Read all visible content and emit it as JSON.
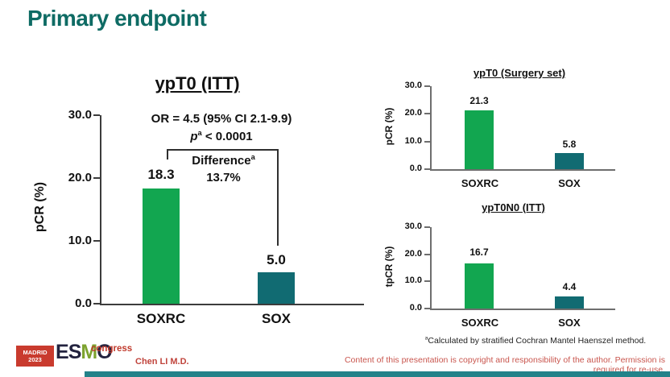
{
  "page": {
    "title": "Primary endpoint",
    "presenter": "Chen LI M.D.",
    "copyright_notice": "Content of this presentation is copyright and responsibility of the author. Permission is required for re-use.",
    "footnote": {
      "sup": "a",
      "text": "Calculated by stratified Cochran Mantel Haenszel method."
    },
    "logo": {
      "location": "MADRID",
      "year": "2023",
      "letters": [
        "E",
        "S",
        "M",
        "O"
      ],
      "event": "congress"
    }
  },
  "annotations": {
    "or_text": "OR = 4.5 (95% CI 2.1-9.9)",
    "p_label": "p",
    "p_sup": "a",
    "p_rest": " < 0.0001",
    "difference_label": "Difference",
    "difference_sup": "a",
    "difference_value": "13.7%"
  },
  "colors": {
    "title_teal": "#0e6b64",
    "bar_green": "#12a650",
    "bar_teal": "#116b72",
    "accent_red": "#c0392b",
    "footer_bar_teal": "#238289"
  },
  "chart_data": [
    {
      "type": "bar",
      "title": "ypT0 (ITT)",
      "ylabel": "pCR (%)",
      "categories": [
        "SOXRC",
        "SOX"
      ],
      "values": [
        18.3,
        5.0
      ],
      "value_labels": [
        "18.3",
        "5.0"
      ],
      "yticks": [
        "30.0",
        "20.0",
        "10.0",
        "0.0"
      ],
      "ylim": [
        0,
        30
      ],
      "grid": false,
      "legend": "none"
    },
    {
      "type": "bar",
      "title": "ypT0 (Surgery set)",
      "ylabel": "pCR (%)",
      "categories": [
        "SOXRC",
        "SOX"
      ],
      "values": [
        21.3,
        5.8
      ],
      "value_labels": [
        "21.3",
        "5.8"
      ],
      "yticks": [
        "30.0",
        "20.0",
        "10.0",
        "0.0"
      ],
      "ylim": [
        0,
        30
      ],
      "grid": false,
      "legend": "none"
    },
    {
      "type": "bar",
      "title": "ypT0N0 (ITT)",
      "ylabel": "tpCR (%)",
      "categories": [
        "SOXRC",
        "SOX"
      ],
      "values": [
        16.7,
        4.4
      ],
      "value_labels": [
        "16.7",
        "4.4"
      ],
      "yticks": [
        "30.0",
        "20.0",
        "10.0",
        "0.0"
      ],
      "ylim": [
        0,
        30
      ],
      "grid": false,
      "legend": "none"
    }
  ]
}
